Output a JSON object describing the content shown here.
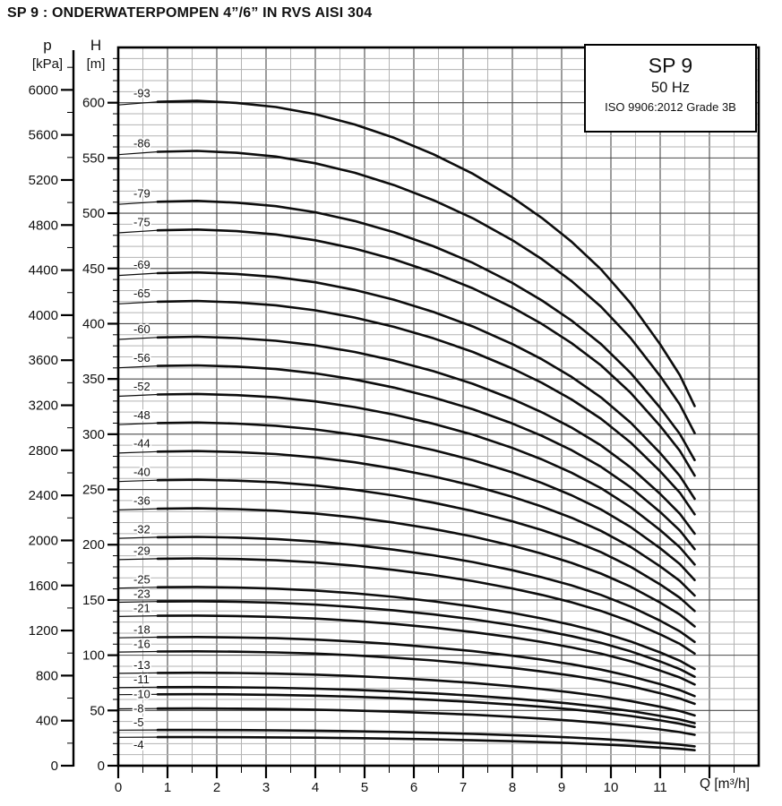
{
  "title": "SP 9 : ONDERWATERPOMPEN 4”/6” IN RVS AISI 304",
  "chart_data": {
    "type": "line",
    "xlabel": "Q [m³/h]",
    "legend_box": {
      "model": "SP 9",
      "frequency": "50 Hz",
      "standard": "ISO 9906:2012 Grade 3B"
    },
    "pressure_axis": {
      "label": "p",
      "unit": "[kPa]",
      "min": 0,
      "max": 6200,
      "major_step": 400,
      "minor_step": 200,
      "kpa_per_m": 9.81,
      "tick_labels": [
        6000,
        5600,
        5200,
        4800,
        4400,
        4000,
        3600,
        3200,
        2800,
        2400,
        2000,
        1600,
        1200,
        800,
        400,
        0
      ]
    },
    "head_axis": {
      "label": "H",
      "unit": "[m]",
      "min": 0,
      "max": 650,
      "major_step": 50,
      "minor_step": 10,
      "tick_labels": [
        600,
        550,
        500,
        450,
        400,
        350,
        300,
        250,
        200,
        150,
        100,
        50,
        0
      ]
    },
    "x_axis": {
      "min": 0,
      "max": 13,
      "major_step": 1,
      "minor_step": 0.5,
      "tick_labels": [
        0,
        1,
        2,
        3,
        4,
        5,
        6,
        7,
        8,
        9,
        10,
        11
      ]
    },
    "grid": "major and minor, on",
    "curves": {
      "series_name_prefix": "SP 9",
      "stages": [
        93,
        86,
        79,
        75,
        69,
        65,
        60,
        56,
        52,
        48,
        44,
        40,
        36,
        32,
        29,
        25,
        23,
        21,
        18,
        16,
        13,
        11,
        10,
        8,
        5,
        4
      ],
      "labels": [
        "-93",
        "-86",
        "-79",
        "-75",
        "-69",
        "-65",
        "-60",
        "-56",
        "-52",
        "-48",
        "-44",
        "-40",
        "-36",
        "-32",
        "-29",
        "-25",
        "-23",
        "-21",
        "-18",
        "-16",
        "-13",
        "-11",
        "-10",
        "-8",
        "-5",
        "-4"
      ],
      "q_samples": [
        0,
        0.8,
        1.6,
        2.4,
        3.2,
        4,
        4.8,
        5.6,
        6.4,
        7.2,
        8,
        8.6,
        9.2,
        9.8,
        10.4,
        11,
        11.4,
        11.7
      ],
      "head_per_stage": [
        6.43,
        6.46,
        6.47,
        6.45,
        6.41,
        6.34,
        6.24,
        6.11,
        5.95,
        5.76,
        5.53,
        5.33,
        5.1,
        4.83,
        4.5,
        4.1,
        3.8,
        3.5
      ],
      "max_flow_m3h": 11.7
    }
  }
}
